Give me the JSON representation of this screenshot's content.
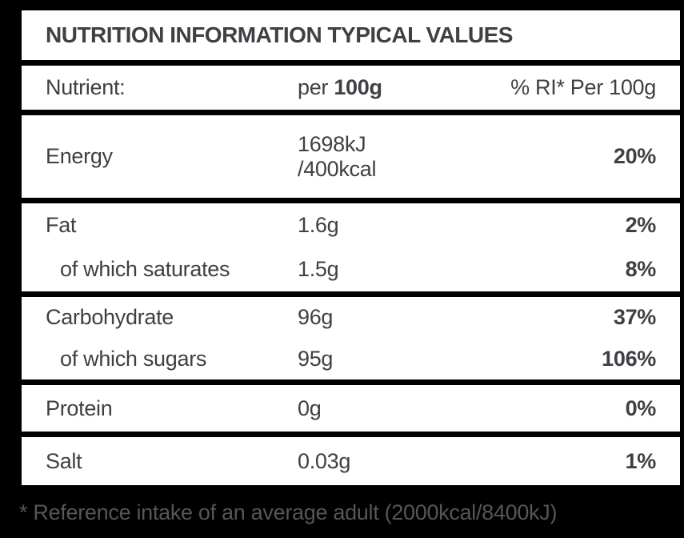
{
  "label": {
    "title": "NUTRITION INFORMATION TYPICAL VALUES",
    "columns": {
      "nutrient": "Nutrient:",
      "per_prefix": "per ",
      "per_bold": "100g",
      "ri": "% RI* Per 100g"
    },
    "rows": {
      "energy": {
        "name": "Energy",
        "value_lines": [
          "1698kJ",
          "/400kcal"
        ],
        "ri": "20%"
      },
      "fat": {
        "name": "Fat",
        "value": "1.6g",
        "ri": "2%"
      },
      "saturates": {
        "name": "of which saturates",
        "value": "1.5g",
        "ri": "8%"
      },
      "carbohydrate": {
        "name": "Carbohydrate",
        "value": "96g",
        "ri": "37%"
      },
      "sugars": {
        "name": "of which sugars",
        "value": "95g",
        "ri": "106%"
      },
      "protein": {
        "name": "Protein",
        "value": "0g",
        "ri": "0%"
      },
      "salt": {
        "name": "Salt",
        "value": "0.03g",
        "ri": "1%"
      }
    },
    "footnote": "* Reference intake of an average adult (2000kcal/8400kJ)"
  },
  "colors": {
    "background": "#000000",
    "panel": "#ffffff",
    "text": "#3e4044",
    "footnote_text": "#54565a"
  }
}
